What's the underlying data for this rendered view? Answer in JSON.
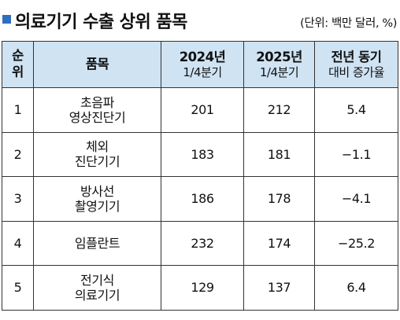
{
  "title": "의료기기 수출 상위 품목",
  "unit": "(단위: 백만 달러, %)",
  "header": {
    "rank": [
      "순",
      "위"
    ],
    "item": "품목",
    "col2024": [
      "2024년",
      "1/4분기"
    ],
    "col2025": [
      "2025년",
      "1/4분기"
    ],
    "yoy": [
      "전년 동기",
      "대비 증가율"
    ]
  },
  "rows": [
    {
      "rank": "1",
      "item": [
        "초음파",
        "영상진단기"
      ],
      "v2024": "201",
      "v2025": "212",
      "yoy": "5.4"
    },
    {
      "rank": "2",
      "item": [
        "체외",
        "진단기기"
      ],
      "v2024": "183",
      "v2025": "181",
      "yoy": "−1.1"
    },
    {
      "rank": "3",
      "item": [
        "방사선",
        "촬영기기"
      ],
      "v2024": "186",
      "v2025": "178",
      "yoy": "−4.1"
    },
    {
      "rank": "4",
      "item": [
        "임플란트"
      ],
      "v2024": "232",
      "v2025": "174",
      "yoy": "−25.2"
    },
    {
      "rank": "5",
      "item": [
        "전기식",
        "의료기기"
      ],
      "v2024": "129",
      "v2025": "137",
      "yoy": "6.4"
    }
  ],
  "colors": {
    "accent": "#2f6fc0",
    "header_bg": "#cfe3f3",
    "border": "#333333"
  }
}
